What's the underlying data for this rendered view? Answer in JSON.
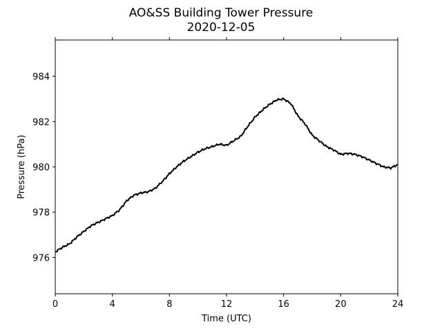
{
  "chart_data": {
    "type": "line",
    "title": "AO&SS Building Tower Pressure",
    "subtitle": "2020-12-05",
    "xlabel": "Time (UTC)",
    "ylabel": "Pressure (hPa)",
    "xlim": [
      0,
      24
    ],
    "ylim": [
      974.4,
      985.6
    ],
    "xticks": [
      0,
      4,
      8,
      12,
      16,
      20,
      24
    ],
    "yticks": [
      976,
      978,
      980,
      982,
      984
    ],
    "grid": false,
    "series": [
      {
        "color": "#000000",
        "x": [
          0,
          0.5,
          1,
          1.5,
          2,
          2.5,
          3,
          3.5,
          4,
          4.5,
          5,
          5.5,
          6,
          6.5,
          7,
          7.5,
          8,
          8.5,
          9,
          9.5,
          10,
          10.5,
          11,
          11.5,
          12,
          12.5,
          13,
          13.5,
          14,
          14.5,
          15,
          15.5,
          16,
          16.5,
          17,
          17.5,
          18,
          18.5,
          19,
          19.5,
          20,
          20.5,
          21,
          21.5,
          22,
          22.5,
          23,
          23.5,
          24
        ],
        "y": [
          976.25,
          976.45,
          976.6,
          976.9,
          977.15,
          977.4,
          977.55,
          977.7,
          977.85,
          978.1,
          978.5,
          978.75,
          978.85,
          978.9,
          979.05,
          979.35,
          979.7,
          980.0,
          980.25,
          980.45,
          980.65,
          980.8,
          980.9,
          981.0,
          980.95,
          981.15,
          981.35,
          981.8,
          982.2,
          982.5,
          982.75,
          982.95,
          983.0,
          982.8,
          982.25,
          981.9,
          981.4,
          981.15,
          980.9,
          980.75,
          980.55,
          980.6,
          980.55,
          980.45,
          980.3,
          980.15,
          980.0,
          979.95,
          980.1
        ]
      }
    ]
  }
}
